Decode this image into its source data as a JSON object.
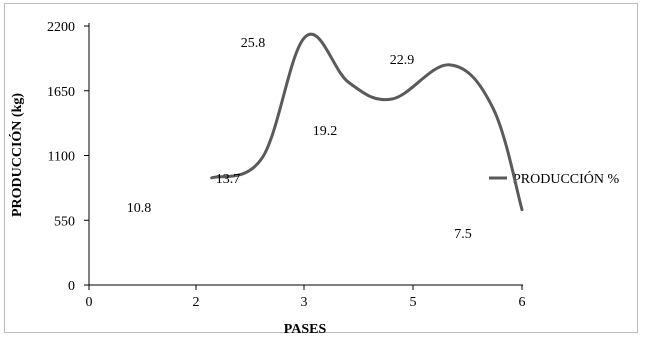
{
  "chart_data": {
    "type": "line",
    "xlabel": "PASES",
    "ylabel": "PRODUCCIÓN (kg)",
    "ylim": [
      0,
      2200
    ],
    "yticks": [
      "0",
      "550",
      "1100",
      "1650",
      "2200"
    ],
    "xticks": [
      "0",
      "2",
      "3",
      "5",
      "6"
    ],
    "grid": false,
    "legend_position": "right",
    "series": [
      {
        "name": "PRODUCCIÓN %",
        "color": "#5a5a5a",
        "x": [
          1.7,
          2.4,
          3.0,
          3.6,
          4.2,
          5.0,
          5.6,
          6.0
        ],
        "values": [
          910,
          1080,
          2110,
          1720,
          1580,
          1870,
          1500,
          640
        ]
      }
    ],
    "data_labels": [
      "10.8",
      "13.7",
      "25.8",
      "19.2",
      "22.9",
      "7.5"
    ]
  }
}
